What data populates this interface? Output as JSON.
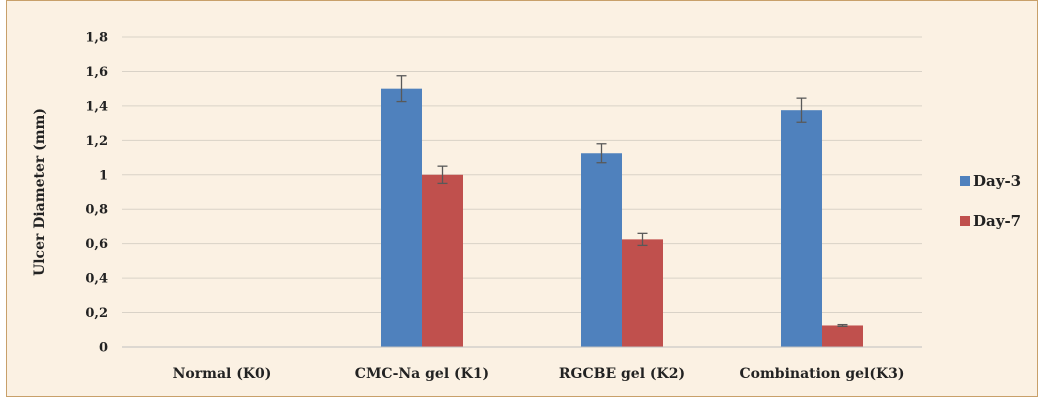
{
  "chart_data": {
    "type": "bar",
    "title": "",
    "xlabel": "",
    "ylabel": "Ulcer Diameter (mm)",
    "categories": [
      "Normal (K0)",
      "CMC-Na gel (K1)",
      "RGCBE gel (K2)",
      "Combination gel(K3)"
    ],
    "series": [
      {
        "name": "Day-3",
        "values": [
          0,
          1.5,
          1.125,
          1.375
        ],
        "errors": [
          0,
          0.075,
          0.055,
          0.07
        ]
      },
      {
        "name": "Day-7",
        "values": [
          0,
          1.0,
          0.625,
          0.125
        ],
        "errors": [
          0,
          0.05,
          0.035,
          0.005
        ]
      }
    ],
    "ylim": [
      0,
      1.8
    ],
    "yticks": [
      "0",
      "0,2",
      "0,4",
      "0,6",
      "0,8",
      "1",
      "1,2",
      "1,4",
      "1,6",
      "1,8"
    ],
    "ytick_values": [
      0,
      0.2,
      0.4,
      0.6,
      0.8,
      1.0,
      1.2,
      1.4,
      1.6,
      1.8
    ],
    "grid": true,
    "legend_position": "right",
    "colors": {
      "Day-3": "#4f81bd",
      "Day-7": "#c0504d",
      "background": "#fbf1e3",
      "frame": "#c8a06a",
      "grid": "#d9d2c7"
    }
  }
}
